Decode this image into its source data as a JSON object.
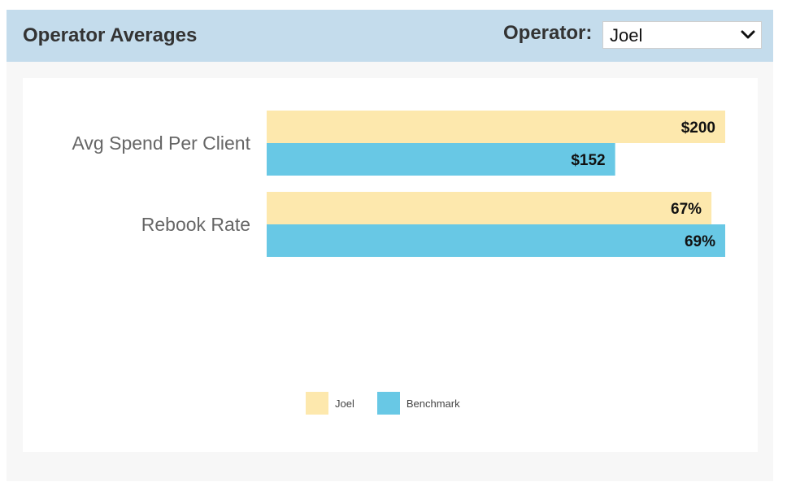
{
  "header": {
    "title": "Operator Averages",
    "operator_label": "Operator:",
    "operator_selected": "Joel"
  },
  "colors": {
    "header_bg": "#c4dcec",
    "joel": "#fde8ad",
    "benchmark": "#68c8e5"
  },
  "chart_data": {
    "type": "bar",
    "orientation": "horizontal",
    "categories": [
      "Avg Spend Per Client",
      "Rebook Rate"
    ],
    "series": [
      {
        "name": "Joel",
        "values_label": [
          "$200",
          "67%"
        ],
        "fill_fraction": [
          1.0,
          0.97
        ]
      },
      {
        "name": "Benchmark",
        "values_label": [
          "$152",
          "69%"
        ],
        "fill_fraction": [
          0.76,
          1.0
        ]
      }
    ],
    "legend_position": "bottom-center"
  },
  "icons": {
    "select_arrow": "chevron-down-icon"
  }
}
